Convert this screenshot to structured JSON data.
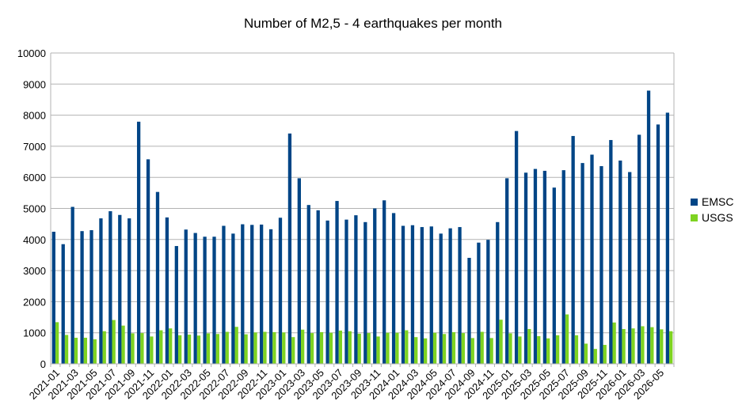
{
  "chart_data": {
    "type": "bar",
    "title": "Number of M2,5 - 4 earthquakes per month",
    "xlabel": "",
    "ylabel": "",
    "ylim": [
      0,
      10000
    ],
    "yticks": [
      0,
      1000,
      2000,
      3000,
      4000,
      5000,
      6000,
      7000,
      8000,
      9000,
      10000
    ],
    "grid": true,
    "legend_position": "right",
    "categories": [
      "2021-01",
      "2021-02",
      "2021-03",
      "2021-04",
      "2021-05",
      "2021-06",
      "2021-07",
      "2021-08",
      "2021-09",
      "2021-10",
      "2021-11",
      "2021-12",
      "2022-01",
      "2022-02",
      "2022-03",
      "2022-04",
      "2022-05",
      "2022-06",
      "2022-07",
      "2022-08",
      "2022-09",
      "2022-10",
      "2022-11",
      "2022-12",
      "2023-01",
      "2023-02",
      "2023-03",
      "2023-04",
      "2023-05",
      "2023-06",
      "2023-07",
      "2023-08",
      "2023-09",
      "2023-10",
      "2023-11",
      "2023-12",
      "2024-01",
      "2024-02",
      "2024-03",
      "2024-04",
      "2024-05",
      "2024-06",
      "2024-07",
      "2024-08",
      "2024-09",
      "2024-10",
      "2024-11",
      "2024-12",
      "2025-01",
      "2025-02",
      "2025-03",
      "2025-04",
      "2025-05",
      "2025-06",
      "2025-07",
      "2025-08",
      "2025-09",
      "2025-10",
      "2025-11",
      "2025-12",
      "2026-01",
      "2026-02",
      "2026-03",
      "2026-04",
      "2026-05",
      "2026-06"
    ],
    "series": [
      {
        "name": "EMSC",
        "color": "#004586",
        "values": [
          4250,
          3850,
          5050,
          4270,
          4300,
          4680,
          4910,
          4790,
          4680,
          7790,
          6580,
          5530,
          4710,
          3790,
          4320,
          4210,
          4090,
          4090,
          4440,
          4190,
          4490,
          4470,
          4480,
          4330,
          4700,
          7410,
          5970,
          5110,
          4940,
          4610,
          5240,
          4640,
          4780,
          4560,
          5000,
          5260,
          4850,
          4440,
          4460,
          4400,
          4420,
          4190,
          4360,
          4400,
          3410,
          3900,
          3990,
          4560,
          5970,
          7490,
          6150,
          6270,
          6210,
          5670,
          6230,
          7330,
          6460,
          6730,
          6360,
          7200,
          6540,
          6170,
          7370,
          8790,
          7700,
          8080
        ]
      },
      {
        "name": "USGS",
        "color": "#7ed321",
        "values": [
          1340,
          930,
          840,
          840,
          790,
          1050,
          1410,
          1230,
          980,
          990,
          880,
          1080,
          1140,
          920,
          940,
          910,
          980,
          960,
          1030,
          1190,
          950,
          1010,
          1030,
          1020,
          1010,
          860,
          1100,
          990,
          1020,
          1000,
          1070,
          1050,
          970,
          990,
          880,
          1000,
          1000,
          1080,
          860,
          820,
          1000,
          960,
          1020,
          990,
          830,
          1030,
          830,
          1420,
          980,
          880,
          1120,
          890,
          820,
          920,
          1590,
          920,
          650,
          480,
          610,
          1330,
          1120,
          1140,
          1210,
          1180,
          1110,
          1050
        ]
      }
    ]
  }
}
